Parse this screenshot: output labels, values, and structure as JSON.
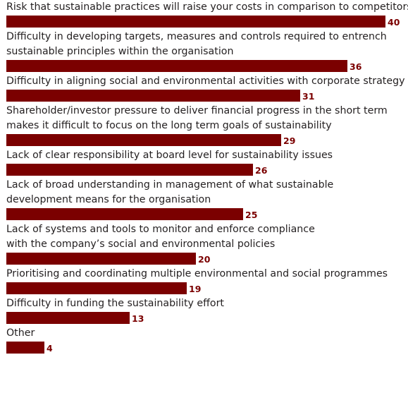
{
  "colors": {
    "bar": "#7b0000",
    "label_text": "#231f20",
    "value_text": "#7b0000"
  },
  "chart_data": {
    "type": "bar",
    "orientation": "horizontal",
    "categories": [
      "Risk that sustainable practices will raise your costs in comparison to competitors",
      "Difficulty in developing targets, measures and controls required to entrench sustainable principles within the organisation",
      "Difficulty in aligning social and environmental activities with corporate strategy",
      "Shareholder/investor pressure to deliver financial progress in the short term makes it difficult to focus on the long term goals of sustainability",
      "Lack of clear responsibility at board level for sustainability issues",
      "Lack of broad understanding in management of what sustainable development means for the organisation",
      "Lack of systems and tools to monitor and enforce compliance with the company’s social and environmental policies",
      "Prioritising and coordinating multiple environmental and social programmes",
      "Difficulty in funding the sustainability effort",
      "Other"
    ],
    "label_lines": [
      [
        "Risk that sustainable practices will raise your costs in comparison to competitors"
      ],
      [
        "Difficulty in developing targets, measures and controls required to entrench",
        "sustainable principles within the organisation"
      ],
      [
        "Difficulty in aligning social and environmental activities with corporate strategy"
      ],
      [
        "Shareholder/investor pressure to deliver financial progress in the short term",
        "makes it difficult to focus on the long term goals of sustainability"
      ],
      [
        "Lack of clear responsibility at board level for sustainability issues"
      ],
      [
        "Lack of broad understanding in management of what sustainable",
        "development means for the organisation"
      ],
      [
        "Lack of systems and tools to monitor and enforce compliance",
        "with the company’s social and environmental policies"
      ],
      [
        "Prioritising and coordinating multiple environmental and social programmes"
      ],
      [
        "Difficulty in funding the sustainability effort"
      ],
      [
        "Other"
      ]
    ],
    "values": [
      40,
      36,
      31,
      29,
      26,
      25,
      20,
      19,
      13,
      4
    ],
    "value_labels": [
      "40",
      "36",
      "31",
      "29",
      "26",
      "25",
      "20",
      "19",
      "13",
      "4"
    ],
    "xlim": [
      0,
      40
    ],
    "grid": false
  }
}
